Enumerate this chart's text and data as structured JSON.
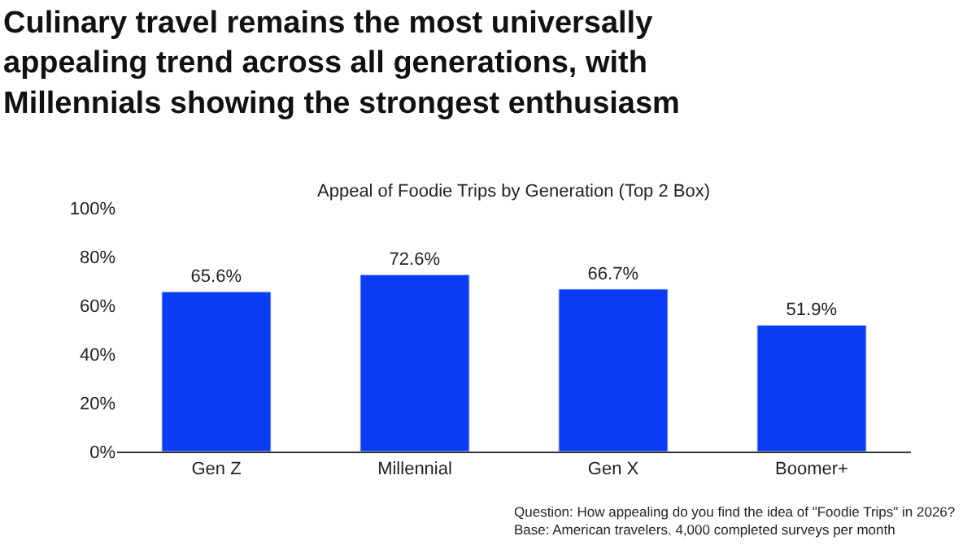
{
  "chart_data": {
    "type": "bar",
    "title": "Culinary travel remains the most universally appealing trend across all generations, with Millennials showing the strongest enthusiasm",
    "subtitle": "Appeal of Foodie Trips by Generation (Top 2 Box)",
    "categories": [
      "Gen Z",
      "Millennial",
      "Gen X",
      "Boomer+"
    ],
    "values": [
      65.6,
      72.6,
      66.7,
      51.9
    ],
    "value_labels": [
      "65.6%",
      "72.6%",
      "66.7%",
      "51.9%"
    ],
    "color": "#0a3cf5",
    "ylim": [
      0,
      100
    ],
    "yticks": [
      {
        "value": 0,
        "label": "0%"
      },
      {
        "value": 20,
        "label": "20%"
      },
      {
        "value": 40,
        "label": "40%"
      },
      {
        "value": 60,
        "label": "60%"
      },
      {
        "value": 80,
        "label": "80%"
      },
      {
        "value": 100,
        "label": "100%"
      }
    ],
    "annotations": [
      "Question: How appealing do you find the idea of \"Foodie Trips\" in 2026?",
      "Base: American travelers. 4,000 completed surveys per month"
    ]
  }
}
